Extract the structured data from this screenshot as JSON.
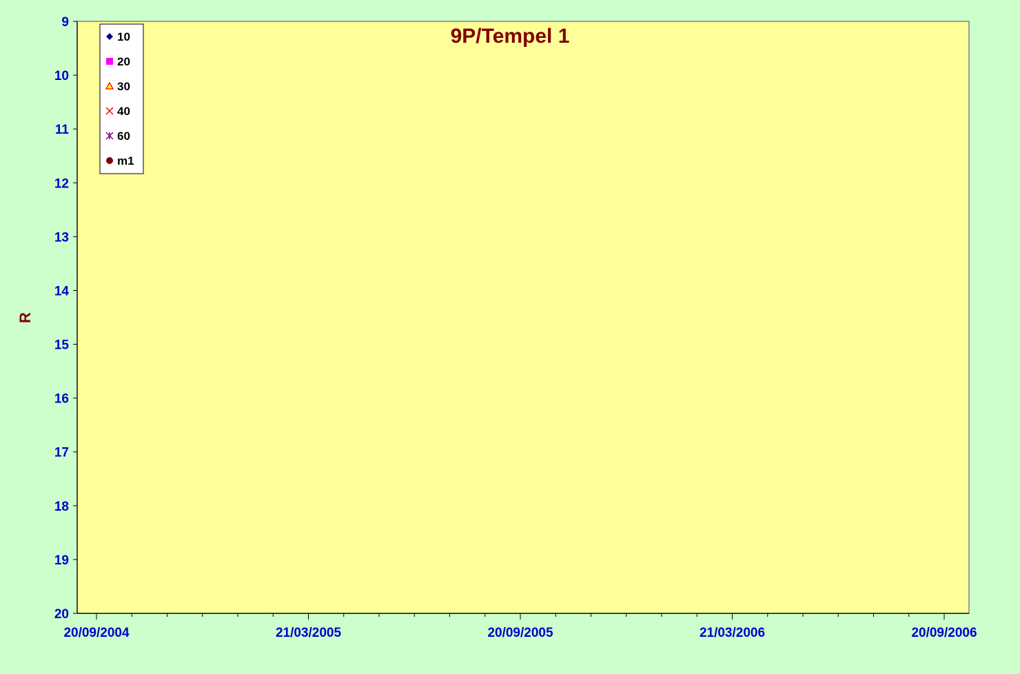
{
  "chart_data": {
    "type": "scatter",
    "title": "9P/Tempel 1",
    "ylabel": "R",
    "xlabel": "",
    "y_axis_reversed": true,
    "ylim": [
      9,
      20
    ],
    "yticks": [
      "9",
      "10",
      "11",
      "12",
      "13",
      "14",
      "15",
      "16",
      "17",
      "18",
      "19",
      "20"
    ],
    "xlim": [
      "2004-09-20",
      "2006-09-20"
    ],
    "xticks": [
      "20/09/2004",
      "21/03/2005",
      "20/09/2005",
      "21/03/2006",
      "20/09/2006"
    ],
    "grid": false,
    "legend_position": "top-left",
    "colors": {
      "page_background": "#ccffcc",
      "plot_background": "#ffff99",
      "title": "#800000",
      "axis_labels": "#0000cc",
      "ylabel": "#800000"
    },
    "series": [
      {
        "name": "10",
        "marker": "diamond",
        "color": "#000080",
        "points": []
      },
      {
        "name": "20",
        "marker": "square",
        "color": "#ff00ff",
        "points": []
      },
      {
        "name": "30",
        "marker": "triangle",
        "color": "#ffff00",
        "edge_color": "#ff0000",
        "points": []
      },
      {
        "name": "40",
        "marker": "x",
        "color": "#ff0000",
        "points": []
      },
      {
        "name": "60",
        "marker": "star",
        "color": "#800080",
        "points": []
      },
      {
        "name": "m1",
        "marker": "circle",
        "color": "#800000",
        "points": []
      }
    ]
  }
}
